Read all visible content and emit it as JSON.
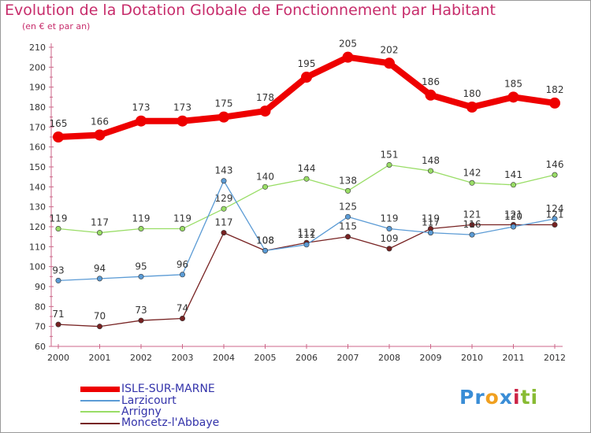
{
  "chart_data": {
    "type": "line",
    "title": "Evolution de la Dotation Globale de Fonctionnement par Habitant",
    "subtitle": "(en € et par an)",
    "xlabel": "",
    "ylabel": "",
    "x": [
      "2000",
      "2001",
      "2002",
      "2003",
      "2004",
      "2005",
      "2006",
      "2007",
      "2008",
      "2009",
      "2010",
      "2011",
      "2012"
    ],
    "ylim": [
      60,
      210
    ],
    "yticks": [
      60,
      70,
      80,
      90,
      100,
      110,
      120,
      130,
      140,
      150,
      160,
      170,
      180,
      190,
      200,
      210
    ],
    "grid": false,
    "legend_position": "bottom-left",
    "series": [
      {
        "name": "ISLE-SUR-MARNE",
        "color": "#ee0000",
        "values": [
          165,
          166,
          173,
          173,
          175,
          178,
          195,
          205,
          202,
          186,
          180,
          185,
          182
        ]
      },
      {
        "name": "Larzicourt",
        "color": "#5b9bd5",
        "values": [
          93,
          94,
          95,
          96,
          143,
          108,
          111,
          125,
          119,
          117,
          116,
          120,
          124
        ]
      },
      {
        "name": "Arrigny",
        "color": "#99dd66",
        "values": [
          119,
          117,
          119,
          119,
          129,
          140,
          144,
          138,
          151,
          148,
          142,
          141,
          146
        ]
      },
      {
        "name": "Moncetz-l'Abbaye",
        "color": "#772222",
        "values": [
          71,
          70,
          73,
          74,
          117,
          108,
          112,
          115,
          109,
          119,
          121,
          121,
          121
        ]
      }
    ]
  },
  "logo": {
    "parts": [
      "Pr",
      "o",
      "x",
      "i",
      "ti"
    ],
    "colors": [
      "#3a8dd6",
      "#f0a020",
      "#3a8dd6",
      "#cc2244",
      "#88bb33"
    ]
  }
}
